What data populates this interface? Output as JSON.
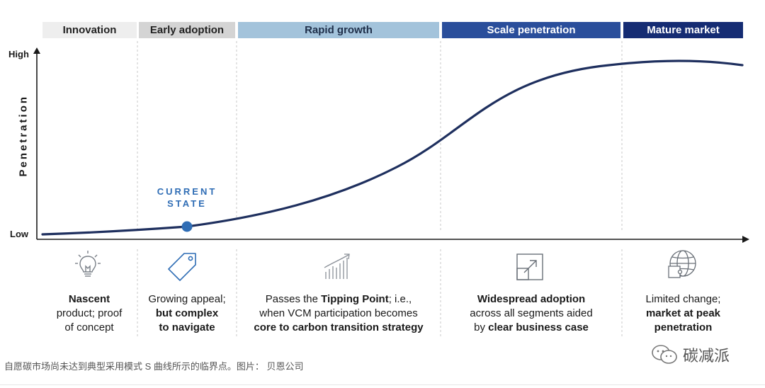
{
  "phases": {
    "innovation": "Innovation",
    "early_adoption": "Early adoption",
    "rapid_growth": "Rapid growth",
    "scale_penetration": "Scale penetration",
    "mature_market": "Mature market"
  },
  "axis": {
    "y_high": "High",
    "y_low": "Low",
    "y_title": "Penetration"
  },
  "marker": {
    "line1": "CURRENT",
    "line2": "STATE"
  },
  "descriptions": {
    "innovation": {
      "b1": "Nascent",
      "t1": "product; proof",
      "t2": "of concept"
    },
    "early": {
      "t1": "Growing appeal;",
      "b1": "but complex",
      "b2": "to navigate"
    },
    "rapid": {
      "t1": "Passes the ",
      "b1": "Tipping Point",
      "t2": "; i.e.,",
      "t3": "when VCM participation becomes",
      "b2": "core to carbon transition strategy"
    },
    "scale": {
      "b1": "Widespread adoption",
      "t1": "across all segments aided",
      "t2": "by ",
      "b2": "clear business case"
    },
    "mature": {
      "t1": "Limited change;",
      "b1": "market at peak",
      "b2": "penetration"
    }
  },
  "icons": [
    "lightbulb-icon",
    "tag-icon",
    "growth-bars-icon",
    "expand-arrow-icon",
    "globe-puzzle-icon"
  ],
  "colors": {
    "curve": "#1e2f5e",
    "marker": "#2f6db5"
  },
  "caption": "自愿碳市场尚未达到典型采用模式 S 曲线所示的临界点。图片： 贝恩公司",
  "brand": "碳减派"
}
